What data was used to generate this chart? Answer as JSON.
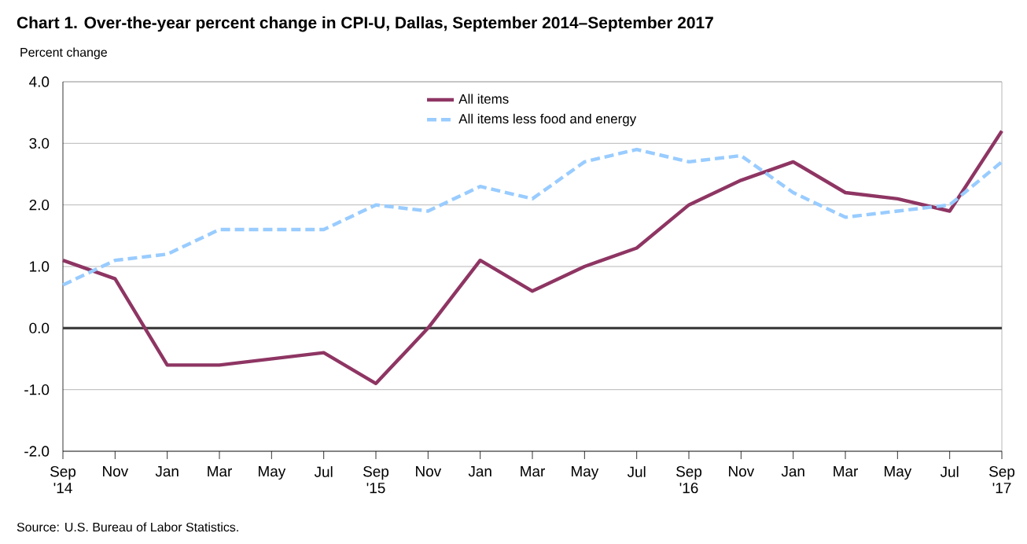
{
  "chart_data": {
    "type": "line",
    "title": "Chart 1. Over-the-year percent change in CPI-U, Dallas, September 2014–September 2017",
    "ylabel": "Percent change",
    "categories": [
      "Sep '14",
      "Nov",
      "Jan",
      "Mar",
      "May",
      "Jul",
      "Sep '15",
      "Nov",
      "Jan",
      "Mar",
      "May",
      "Jul",
      "Sep '16",
      "Nov",
      "Jan",
      "Mar",
      "May",
      "Jul",
      "Sep '17"
    ],
    "series": [
      {
        "name": "All items",
        "color": "#8e3563",
        "line_style": "solid",
        "values": [
          1.1,
          0.8,
          -0.6,
          -0.6,
          -0.5,
          -0.4,
          -0.9,
          0.0,
          1.1,
          0.6,
          1.0,
          1.3,
          2.0,
          2.4,
          2.7,
          2.2,
          2.1,
          1.9,
          3.2
        ]
      },
      {
        "name": "All items less food and energy",
        "color": "#99ccff",
        "line_style": "dashed",
        "values": [
          0.7,
          1.1,
          1.2,
          1.6,
          1.6,
          1.6,
          2.0,
          1.9,
          2.3,
          2.1,
          2.7,
          2.9,
          2.7,
          2.8,
          2.2,
          1.8,
          1.9,
          2.0,
          2.7
        ]
      }
    ],
    "ylim": [
      -2,
      4
    ],
    "yticks": [
      {
        "value": -2,
        "label": "-2.0"
      },
      {
        "value": -1,
        "label": "-1.0"
      },
      {
        "value": 0,
        "label": "0.0"
      },
      {
        "value": 1,
        "label": "1.0"
      },
      {
        "value": 2,
        "label": "2.0"
      },
      {
        "value": 3,
        "label": "3.0"
      },
      {
        "value": 4,
        "label": "4.0"
      }
    ],
    "grid": "y",
    "legend": "top",
    "marker": "none",
    "ref_lines": [
      {
        "axis": "y",
        "value": 0,
        "color": "#404040"
      }
    ],
    "annotations": [
      "Source: U.S. Bureau of Labor Statistics."
    ]
  }
}
